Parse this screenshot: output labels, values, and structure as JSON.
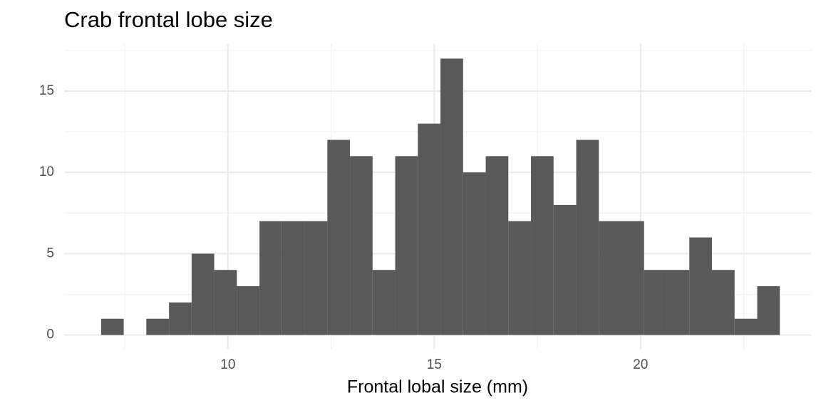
{
  "chart_data": {
    "type": "histogram",
    "title": "Crab frontal lobe size",
    "x_label": "Frontal lobal size (mm)",
    "bins": [
      6.926,
      7.474,
      8.022,
      8.571,
      9.119,
      9.667,
      10.216,
      10.764,
      11.312,
      11.86,
      12.409,
      12.957,
      13.505,
      14.053,
      14.602,
      15.15,
      15.698,
      16.247,
      16.795,
      17.343,
      17.891,
      18.44,
      18.988,
      19.536,
      20.084,
      20.633,
      21.181,
      21.729,
      22.278,
      22.826,
      23.374
    ],
    "values": [
      1,
      0,
      1,
      2,
      5,
      4,
      3,
      7,
      7,
      7,
      12,
      11,
      4,
      11,
      13,
      17,
      10,
      11,
      7,
      11,
      8,
      12,
      7,
      7,
      4,
      4,
      6,
      4,
      1,
      3
    ],
    "color": "#595959",
    "xlim": [
      6.03,
      24.13
    ],
    "ylim": [
      -0.85,
      17.89
    ],
    "xticks": [
      10,
      15,
      20
    ],
    "yticks": [
      0,
      5,
      10,
      15
    ],
    "minor_xticks": [
      7.5,
      12.5,
      17.5,
      22.5
    ],
    "minor_yticks": [
      2.5,
      7.5,
      12.5,
      17.5
    ],
    "grid": true
  }
}
